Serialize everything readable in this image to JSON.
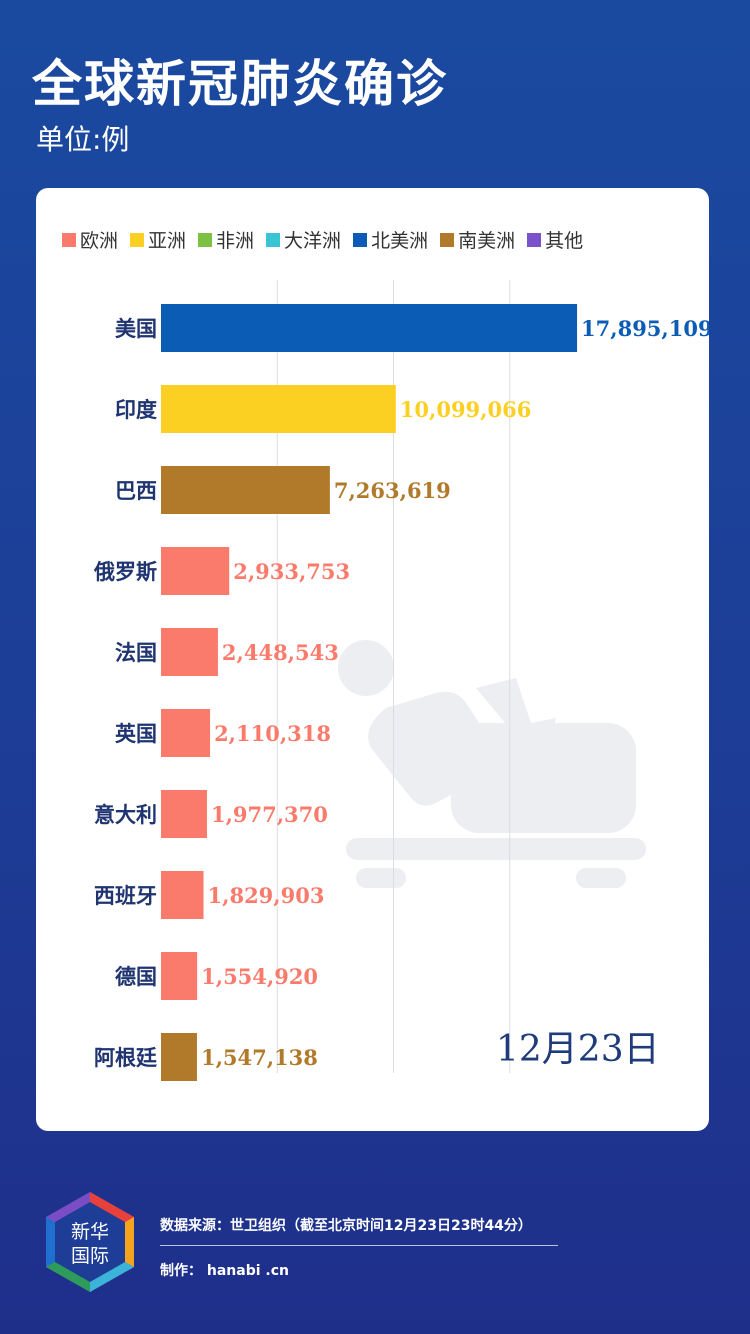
{
  "header": {
    "title": "全球新冠肺炎确诊",
    "unit": "单位:例"
  },
  "legend": [
    {
      "label": "欧洲",
      "color": "#fa7b6b"
    },
    {
      "label": "亚洲",
      "color": "#fcd022"
    },
    {
      "label": "非洲",
      "color": "#7dc142"
    },
    {
      "label": "大洋洲",
      "color": "#38c4d4"
    },
    {
      "label": "北美洲",
      "color": "#0b5cb5"
    },
    {
      "label": "南美洲",
      "color": "#b07a2a"
    },
    {
      "label": "其他",
      "color": "#7b52c9"
    }
  ],
  "chart_data": {
    "type": "bar",
    "orientation": "horizontal",
    "title": "全球新冠肺炎确诊",
    "unit": "单位:例",
    "date": "12月23日",
    "categories": [
      "美国",
      "印度",
      "巴西",
      "俄罗斯",
      "法国",
      "英国",
      "意大利",
      "西班牙",
      "德国",
      "阿根廷"
    ],
    "values": [
      17895109,
      10099066,
      7263619,
      2933753,
      2448543,
      2110318,
      1977370,
      1829903,
      1554920,
      1547138
    ],
    "value_labels": [
      "17,895,109",
      "10,099,066",
      "7,263,619",
      "2,933,753",
      "2,448,543",
      "2,110,318",
      "1,977,370",
      "1,829,903",
      "1,554,920",
      "1,547,138"
    ],
    "regions": [
      "北美洲",
      "亚洲",
      "南美洲",
      "欧洲",
      "欧洲",
      "欧洲",
      "欧洲",
      "欧洲",
      "欧洲",
      "南美洲"
    ],
    "xlim": [
      0,
      20000000
    ],
    "grid": true,
    "legend_position": "top"
  },
  "footer": {
    "logo_text_1": "新华",
    "logo_text_2": "国际",
    "source": "数据来源：世卫组织（截至北京时间12月23日23时44分）",
    "credit": "制作：  hanabi  .cn"
  }
}
